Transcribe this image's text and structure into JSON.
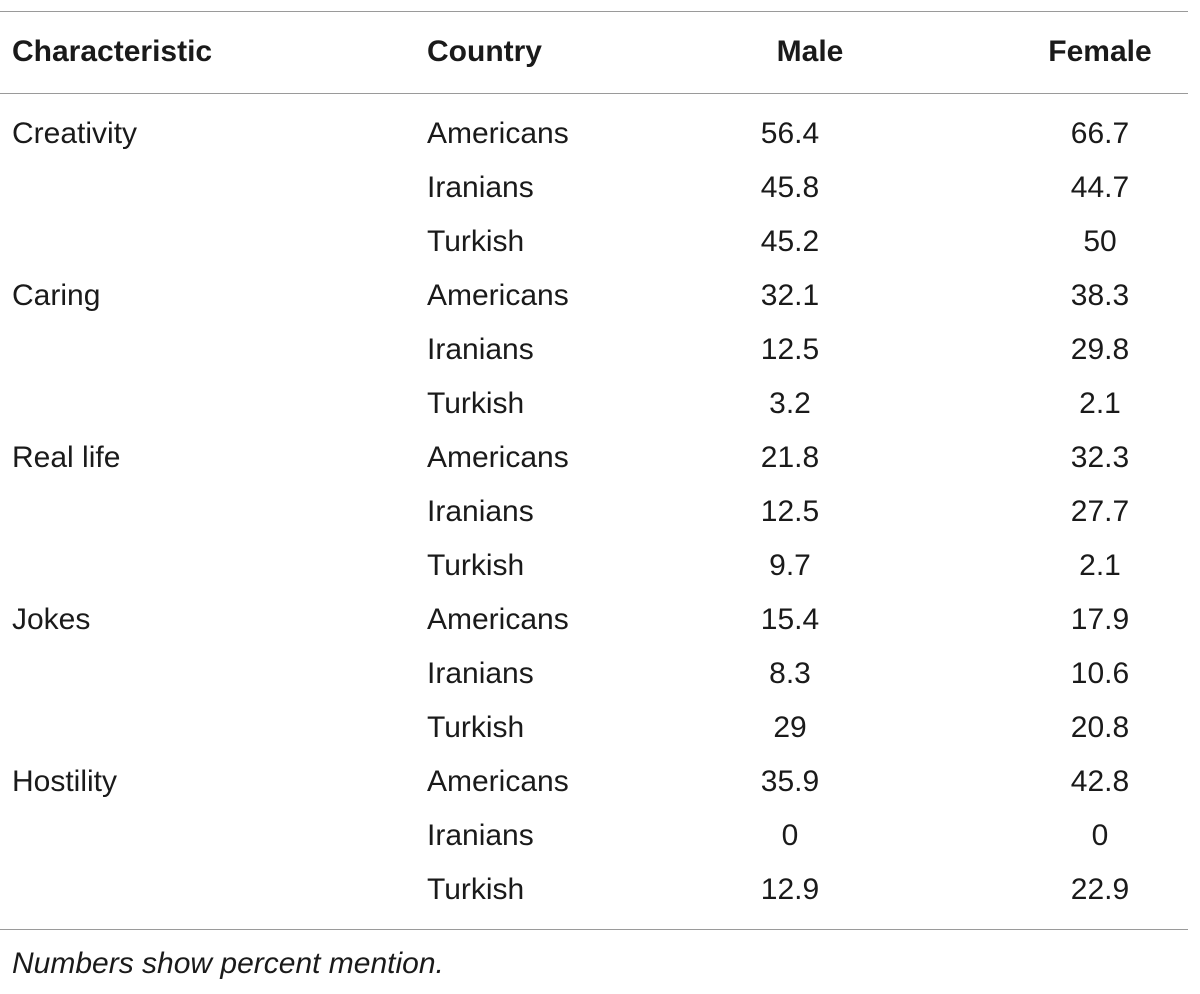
{
  "table": {
    "headers": {
      "characteristic": "Characteristic",
      "country": "Country",
      "male": "Male",
      "female": "Female"
    },
    "rows": [
      {
        "characteristic": "Creativity",
        "country": "Americans",
        "male": "56.4",
        "female": "66.7"
      },
      {
        "characteristic": "",
        "country": "Iranians",
        "male": "45.8",
        "female": "44.7"
      },
      {
        "characteristic": "",
        "country": "Turkish",
        "male": "45.2",
        "female": "50"
      },
      {
        "characteristic": "Caring",
        "country": "Americans",
        "male": "32.1",
        "female": "38.3"
      },
      {
        "characteristic": "",
        "country": "Iranians",
        "male": "12.5",
        "female": "29.8"
      },
      {
        "characteristic": "",
        "country": "Turkish",
        "male": "3.2",
        "female": "2.1"
      },
      {
        "characteristic": "Real life",
        "country": "Americans",
        "male": "21.8",
        "female": "32.3"
      },
      {
        "characteristic": "",
        "country": "Iranians",
        "male": "12.5",
        "female": "27.7"
      },
      {
        "characteristic": "",
        "country": "Turkish",
        "male": "9.7",
        "female": "2.1"
      },
      {
        "characteristic": "Jokes",
        "country": "Americans",
        "male": "15.4",
        "female": "17.9"
      },
      {
        "characteristic": "",
        "country": "Iranians",
        "male": "8.3",
        "female": "10.6"
      },
      {
        "characteristic": "",
        "country": "Turkish",
        "male": "29",
        "female": "20.8"
      },
      {
        "characteristic": "Hostility",
        "country": "Americans",
        "male": "35.9",
        "female": "42.8"
      },
      {
        "characteristic": "",
        "country": "Iranians",
        "male": "0",
        "female": "0"
      },
      {
        "characteristic": "",
        "country": "Turkish",
        "male": "12.9",
        "female": "22.9"
      }
    ]
  },
  "footnote": "Numbers show percent mention."
}
